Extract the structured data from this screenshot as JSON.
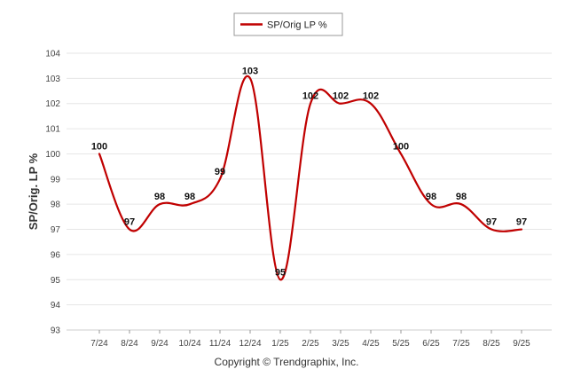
{
  "chart_data": {
    "type": "line",
    "categories": [
      "7/24",
      "8/24",
      "9/24",
      "10/24",
      "11/24",
      "12/24",
      "1/25",
      "2/25",
      "3/25",
      "4/25",
      "5/25",
      "6/25",
      "7/25",
      "8/25",
      "9/25"
    ],
    "series": [
      {
        "name": "SP/Orig LP %",
        "values": [
          100,
          97,
          98,
          98,
          99,
          103,
          95,
          102,
          102,
          102,
          100,
          98,
          98,
          97,
          97
        ],
        "color": "#c00000"
      }
    ],
    "title": "",
    "xlabel": "",
    "ylabel": "SP/Orig. LP %",
    "ylim": [
      93,
      104
    ],
    "yticks": [
      93,
      94,
      95,
      96,
      97,
      98,
      99,
      100,
      101,
      102,
      103,
      104
    ],
    "grid": true,
    "legend_position": "top-center"
  },
  "footer": {
    "copyright": "Copyright © Trendgraphix, Inc."
  }
}
